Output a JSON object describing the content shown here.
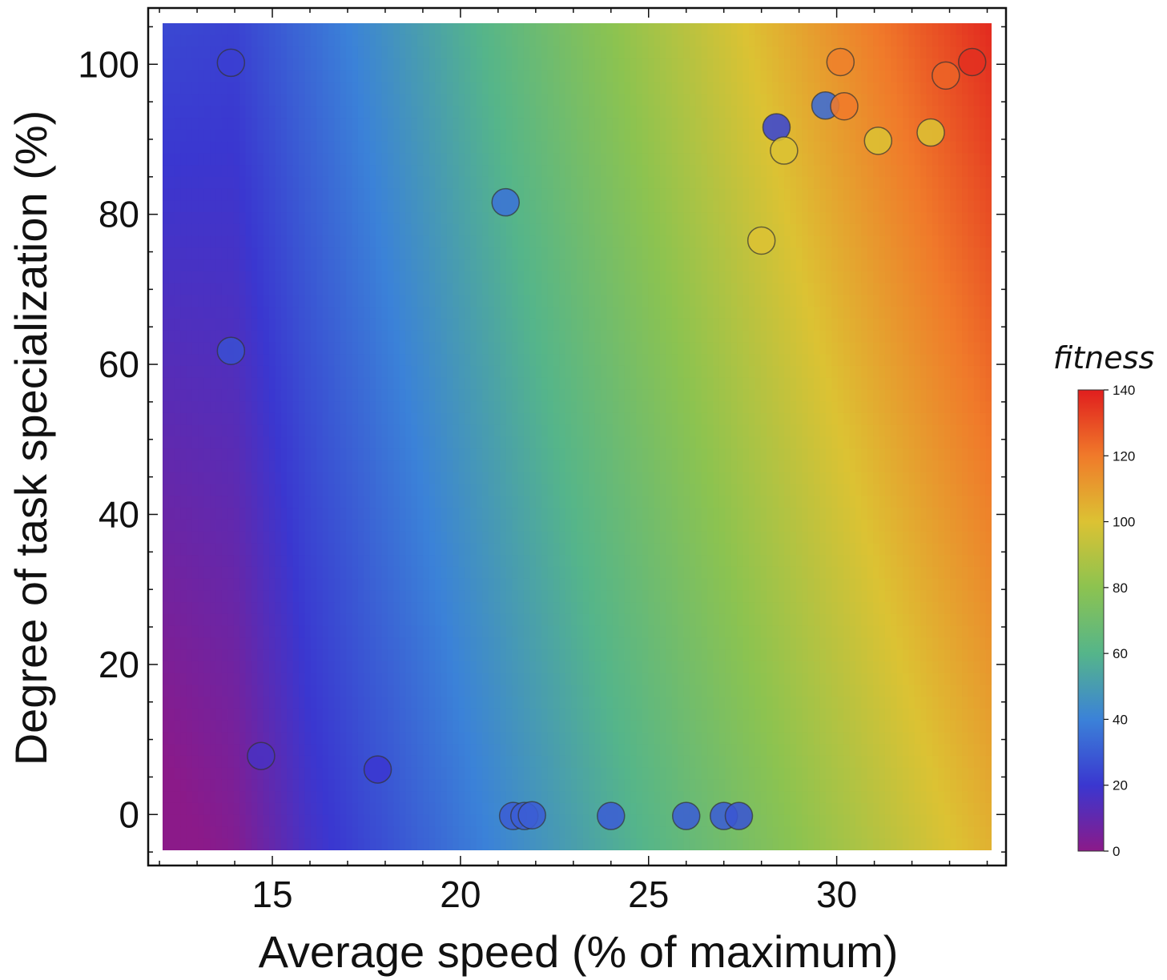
{
  "chart_data": {
    "type": "scatter",
    "title": "",
    "xlabel": "Average speed (% of maximum)",
    "ylabel": "Degree of task specialization (%)",
    "xlim": [
      11.7,
      34.5
    ],
    "ylim": [
      -6.8,
      107.5
    ],
    "xticks": [
      15,
      20,
      25,
      30
    ],
    "yticks": [
      0,
      20,
      40,
      60,
      80,
      100
    ],
    "grid": false,
    "background": "fitness surface (color gradient), fitness increases with speed and specialization",
    "colorbar": {
      "title": "fitness",
      "range": [
        0,
        140
      ],
      "ticks": [
        0,
        20,
        40,
        60,
        80,
        100,
        120,
        140
      ],
      "colormap": [
        "#8b1a89",
        "#3a37d0",
        "#3b82d8",
        "#55b58a",
        "#8cc350",
        "#dcc233",
        "#f07a2a",
        "#e01e1e"
      ]
    },
    "points": [
      {
        "x": 13.9,
        "y": 100.2,
        "fitness": 22
      },
      {
        "x": 13.9,
        "y": 61.8,
        "fitness": 26
      },
      {
        "x": 14.7,
        "y": 7.8,
        "fitness": 16
      },
      {
        "x": 17.8,
        "y": 6.0,
        "fitness": 20
      },
      {
        "x": 21.2,
        "y": 81.6,
        "fitness": 36
      },
      {
        "x": 21.4,
        "y": -0.2,
        "fitness": 30
      },
      {
        "x": 21.7,
        "y": -0.2,
        "fitness": 30
      },
      {
        "x": 21.9,
        "y": -0.1,
        "fitness": 30
      },
      {
        "x": 24.0,
        "y": -0.2,
        "fitness": 30
      },
      {
        "x": 26.0,
        "y": -0.2,
        "fitness": 30
      },
      {
        "x": 27.0,
        "y": -0.2,
        "fitness": 30
      },
      {
        "x": 27.4,
        "y": -0.2,
        "fitness": 28
      },
      {
        "x": 28.0,
        "y": 76.5,
        "fitness": 100
      },
      {
        "x": 28.4,
        "y": 91.6,
        "fitness": 24
      },
      {
        "x": 28.6,
        "y": 88.5,
        "fitness": 100
      },
      {
        "x": 29.7,
        "y": 94.5,
        "fitness": 34
      },
      {
        "x": 30.1,
        "y": 100.3,
        "fitness": 118
      },
      {
        "x": 30.2,
        "y": 94.4,
        "fitness": 120
      },
      {
        "x": 31.1,
        "y": 89.8,
        "fitness": 100
      },
      {
        "x": 32.5,
        "y": 90.9,
        "fitness": 100
      },
      {
        "x": 32.9,
        "y": 98.5,
        "fitness": 125
      },
      {
        "x": 33.6,
        "y": 100.3,
        "fitness": 136
      }
    ]
  }
}
